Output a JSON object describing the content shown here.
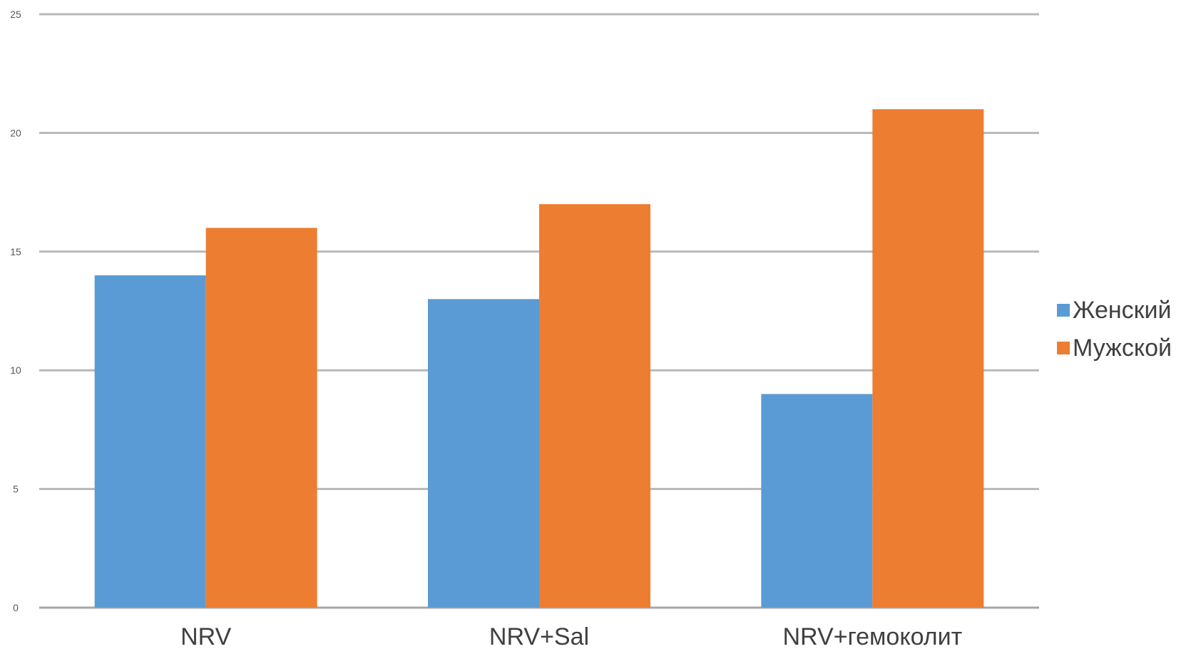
{
  "chart_data": {
    "type": "bar",
    "title": "",
    "xlabel": "",
    "ylabel": "",
    "categories": [
      "NRV",
      "NRV+Sal",
      "NRV+гемоколит"
    ],
    "series": [
      {
        "name": "Женский",
        "values": [
          14,
          13,
          9
        ],
        "color": "#5b9bd5"
      },
      {
        "name": "Мужской",
        "values": [
          16,
          17,
          21
        ],
        "color": "#ed7d31"
      }
    ],
    "ylim": [
      0,
      25
    ],
    "yticks": [
      0,
      5,
      10,
      15,
      20,
      25
    ],
    "grid": true,
    "legend_position": "right"
  }
}
